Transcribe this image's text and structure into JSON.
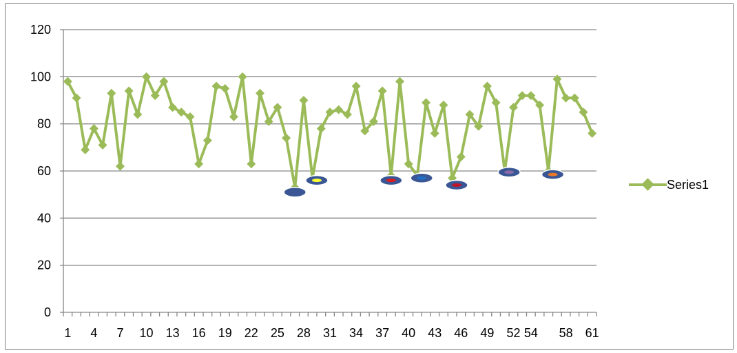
{
  "chart_data": {
    "type": "line",
    "ylim": [
      0,
      120
    ],
    "y_ticks": [
      0,
      20,
      40,
      60,
      80,
      100,
      120
    ],
    "x_ticks": [
      1,
      4,
      7,
      10,
      13,
      16,
      19,
      22,
      25,
      28,
      31,
      34,
      37,
      40,
      43,
      46,
      49,
      52,
      54,
      58,
      61
    ],
    "grid": true,
    "legend_position": "right",
    "series": [
      {
        "name": "Series1",
        "color": "#9bbb59",
        "values": [
          98,
          91,
          69,
          78,
          71,
          93,
          62,
          94,
          84,
          100,
          92,
          98,
          87,
          85,
          83,
          63,
          73,
          96,
          95,
          83,
          100,
          63,
          93,
          81,
          87,
          74,
          53,
          90,
          57,
          78,
          85,
          86,
          84,
          96,
          77,
          81,
          94,
          58,
          98,
          63,
          58,
          89,
          76,
          88,
          57,
          66,
          84,
          79,
          96,
          89,
          60,
          87,
          92,
          92,
          88,
          60,
          99,
          91,
          91,
          85,
          76
        ]
      }
    ],
    "annotations": [
      {
        "x": 27,
        "y": 51,
        "fill": "#3a5694",
        "center": "#3a5694"
      },
      {
        "x": 29.5,
        "y": 56,
        "fill": "#3a5694",
        "center": "#ffff33"
      },
      {
        "x": 38,
        "y": 56,
        "fill": "#3a5694",
        "center": "#e01b1b"
      },
      {
        "x": 41.5,
        "y": 57,
        "fill": "#3a5694",
        "center": "#1e6fc4"
      },
      {
        "x": 45.5,
        "y": 54,
        "fill": "#3a5694",
        "center": "#c0142a"
      },
      {
        "x": 51.5,
        "y": 59.5,
        "fill": "#3a5694",
        "center": "#8a6aa8"
      },
      {
        "x": 56.5,
        "y": 58.5,
        "fill": "#3a5694",
        "center": "#e8782a"
      }
    ]
  }
}
